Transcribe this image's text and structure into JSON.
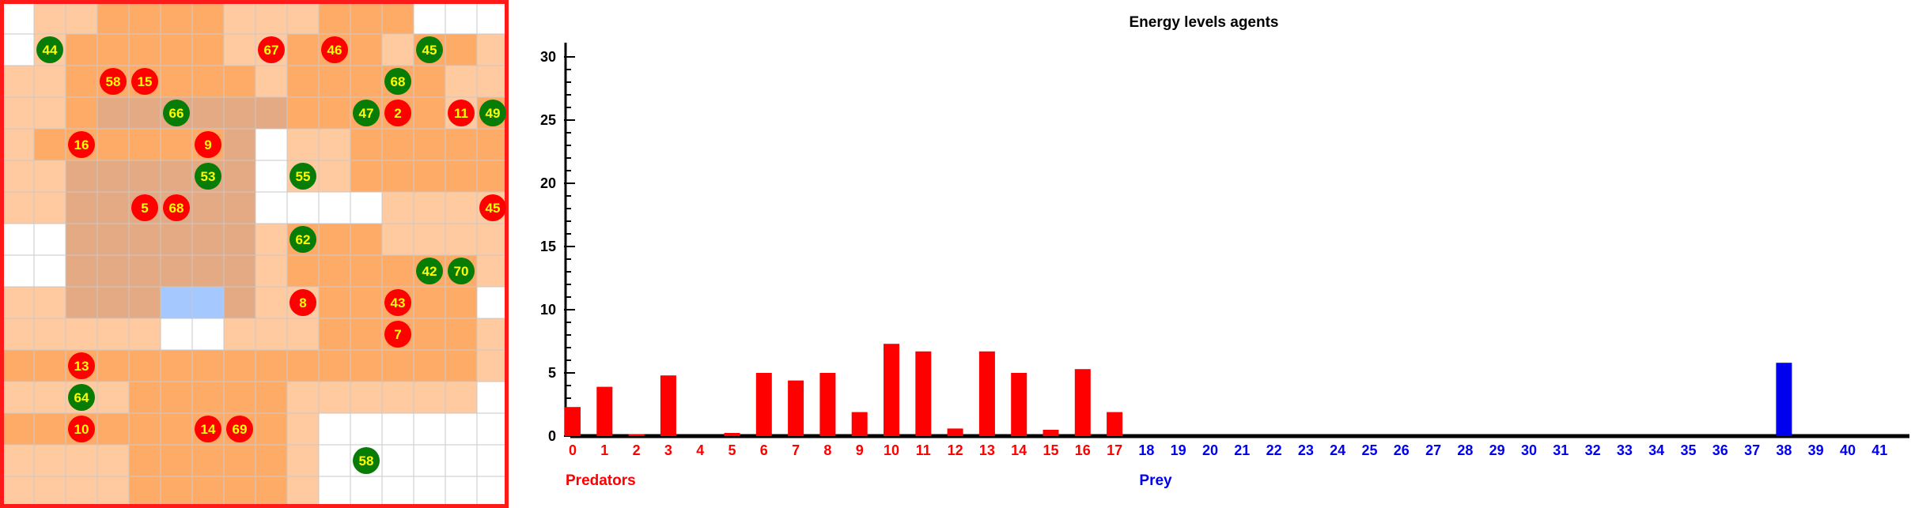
{
  "grid": {
    "rows": 16,
    "cols": 16,
    "colors": {
      "white": "#ffffff",
      "orange": "#ffab68",
      "light": "#ffcaa0",
      "gray": "#e4aa84",
      "blue": "#a5c9ff",
      "predator": "#ff0000",
      "prey": "#077d07",
      "label": "#ffff00",
      "border": "#ff1a1a"
    },
    "cells": [
      "WLLOOOOLLLOOOWWW",
      "WLOOOOOLLOOOLOOL",
      "LLOOOOOOLOOOOOLL",
      "LLOGGGGGGOOOOOLO",
      "LOOOOOOGWLLOOOOO",
      "LLGGGGGGWLLOOOOO",
      "LLGGGGGGWWWWLLLL",
      "WWGGGGGGLOOOLLLL",
      "WWGGGGGGLOOOOOOL",
      "LLGGGBBGLLOOOOOW",
      "LLLLLWWLLLOOOOOL",
      "OOOOOOOOOOOOOOOL",
      "LLLLOOOOOLLLLLLW",
      "OOOOOOOOOLWWWWWW",
      "LLLLOOOOOLWWWWWW",
      "LLLLOOOOOLWWWWWW"
    ],
    "agents": [
      {
        "label": "44",
        "kind": "prey",
        "col": 1,
        "row": 1
      },
      {
        "label": "66",
        "kind": "prey",
        "col": 5,
        "row": 3
      },
      {
        "label": "53",
        "kind": "prey",
        "col": 6,
        "row": 5
      },
      {
        "label": "55",
        "kind": "prey",
        "col": 9,
        "row": 5
      },
      {
        "label": "62",
        "kind": "prey",
        "col": 9,
        "row": 7
      },
      {
        "label": "45",
        "kind": "prey",
        "col": 13,
        "row": 1
      },
      {
        "label": "68",
        "kind": "prey",
        "col": 12,
        "row": 2
      },
      {
        "label": "47",
        "kind": "prey",
        "col": 11,
        "row": 3
      },
      {
        "label": "49",
        "kind": "prey",
        "col": 15,
        "row": 3
      },
      {
        "label": "42",
        "kind": "prey",
        "col": 13,
        "row": 8
      },
      {
        "label": "70",
        "kind": "prey",
        "col": 14,
        "row": 8
      },
      {
        "label": "64",
        "kind": "prey",
        "col": 2,
        "row": 12
      },
      {
        "label": "58",
        "kind": "prey",
        "col": 11,
        "row": 14
      },
      {
        "label": "67",
        "kind": "predator",
        "col": 8,
        "row": 1
      },
      {
        "label": "46",
        "kind": "predator",
        "col": 10,
        "row": 1
      },
      {
        "label": "58",
        "kind": "predator",
        "col": 3,
        "row": 2
      },
      {
        "label": "15",
        "kind": "predator",
        "col": 4,
        "row": 2
      },
      {
        "label": "2",
        "kind": "predator",
        "col": 12,
        "row": 3
      },
      {
        "label": "11",
        "kind": "predator",
        "col": 14,
        "row": 3
      },
      {
        "label": "16",
        "kind": "predator",
        "col": 2,
        "row": 4
      },
      {
        "label": "9",
        "kind": "predator",
        "col": 6,
        "row": 4
      },
      {
        "label": "5",
        "kind": "predator",
        "col": 4,
        "row": 6
      },
      {
        "label": "68",
        "kind": "predator",
        "col": 5,
        "row": 6
      },
      {
        "label": "45",
        "kind": "predator",
        "col": 15,
        "row": 6
      },
      {
        "label": "8",
        "kind": "predator",
        "col": 9,
        "row": 9
      },
      {
        "label": "43",
        "kind": "predator",
        "col": 12,
        "row": 9
      },
      {
        "label": "7",
        "kind": "predator",
        "col": 12,
        "row": 10
      },
      {
        "label": "13",
        "kind": "predator",
        "col": 2,
        "row": 11
      },
      {
        "label": "10",
        "kind": "predator",
        "col": 2,
        "row": 13
      },
      {
        "label": "14",
        "kind": "predator",
        "col": 6,
        "row": 13
      },
      {
        "label": "69",
        "kind": "predator",
        "col": 7,
        "row": 13
      }
    ]
  },
  "chart_data": {
    "type": "bar",
    "title": "Energy levels agents",
    "xlabel": "",
    "ylabel": "",
    "ylim": [
      0,
      30
    ],
    "yticks": [
      "0",
      "5",
      "10",
      "15",
      "20",
      "25",
      "30"
    ],
    "categories": [
      "0",
      "1",
      "2",
      "3",
      "4",
      "5",
      "6",
      "7",
      "8",
      "9",
      "10",
      "11",
      "12",
      "13",
      "14",
      "15",
      "16",
      "17",
      "18",
      "19",
      "20",
      "21",
      "22",
      "23",
      "24",
      "25",
      "26",
      "27",
      "28",
      "29",
      "30",
      "31",
      "32",
      "33",
      "34",
      "35",
      "36",
      "37",
      "38",
      "39",
      "40",
      "41"
    ],
    "values": [
      2.3,
      3.9,
      0.15,
      4.8,
      0,
      0.25,
      5.0,
      4.4,
      5.0,
      1.9,
      7.3,
      6.7,
      0.6,
      6.7,
      5.0,
      0.5,
      5.3,
      1.9,
      0,
      0,
      0,
      0,
      0,
      0,
      0,
      0,
      0,
      0,
      0,
      0,
      0,
      0,
      0,
      0,
      0,
      0,
      0,
      0,
      5.8,
      0,
      0,
      0
    ],
    "groups": [
      {
        "name": "Predators",
        "from": 0,
        "to": 17,
        "color": "#ff0000"
      },
      {
        "name": "Prey",
        "from": 18,
        "to": 41,
        "color": "#0000ee"
      }
    ]
  }
}
